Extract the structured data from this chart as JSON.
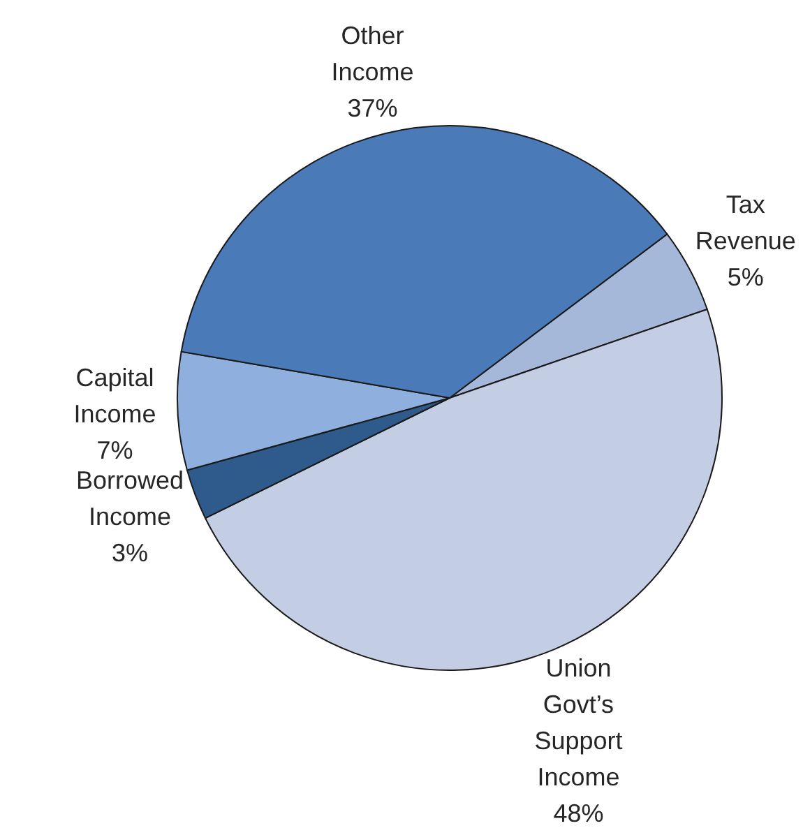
{
  "chart_data": {
    "type": "pie",
    "categories": [
      "Tax Revenue",
      "Union Govt’s Support Income",
      "Borrowed Income",
      "Capital Income",
      "Other Income"
    ],
    "values": [
      5,
      48,
      3,
      7,
      37
    ],
    "value_labels": [
      "5%",
      "48%",
      "3%",
      "7%",
      "37%"
    ],
    "colors": [
      "#a5b8d9",
      "#c3cde3",
      "#2f5a8c",
      "#8fb0de",
      "#4a7ab8"
    ]
  }
}
